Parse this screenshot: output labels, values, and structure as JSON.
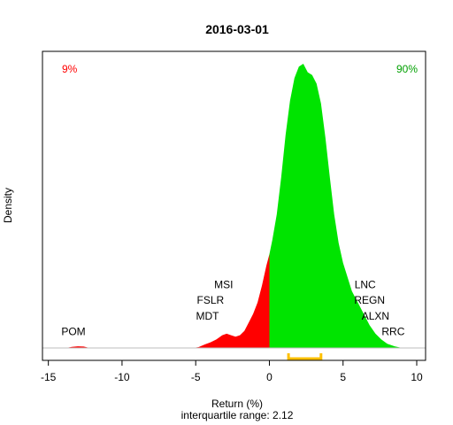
{
  "chart_data": {
    "type": "area",
    "title": "2016-03-01",
    "xlabel": "Return (%)",
    "xlabel_sub": "interquartile range: 2.12",
    "ylabel": "Density",
    "xlim": [
      -15.4,
      10.6
    ],
    "ylim": [
      0,
      1
    ],
    "grid": false,
    "x_ticks": [
      -15,
      -10,
      -5,
      0,
      5,
      10
    ],
    "x_tick_labels": [
      "-15",
      "-10",
      "-5",
      "0",
      "5",
      "10"
    ],
    "left_pct_label": "9%",
    "right_pct_label": "90%",
    "colors": {
      "negative": "#ff0000",
      "positive": "#00e400",
      "iqr": "#ffc000",
      "baseline": "#bebebe"
    },
    "iqr": [
      1.3,
      3.5
    ],
    "density": [
      [
        -13.8,
        0.0
      ],
      [
        -13.4,
        0.004
      ],
      [
        -13.0,
        0.006
      ],
      [
        -12.6,
        0.005
      ],
      [
        -12.2,
        0.0
      ],
      [
        -5.2,
        0.0
      ],
      [
        -4.8,
        0.003
      ],
      [
        -4.4,
        0.012
      ],
      [
        -4.0,
        0.02
      ],
      [
        -3.6,
        0.03
      ],
      [
        -3.2,
        0.045
      ],
      [
        -2.9,
        0.05
      ],
      [
        -2.6,
        0.045
      ],
      [
        -2.3,
        0.04
      ],
      [
        -2.0,
        0.045
      ],
      [
        -1.7,
        0.06
      ],
      [
        -1.4,
        0.09
      ],
      [
        -1.1,
        0.12
      ],
      [
        -0.8,
        0.16
      ],
      [
        -0.5,
        0.22
      ],
      [
        -0.2,
        0.29
      ],
      [
        0.0,
        0.33
      ],
      [
        0.2,
        0.38
      ],
      [
        0.5,
        0.47
      ],
      [
        0.8,
        0.6
      ],
      [
        1.1,
        0.75
      ],
      [
        1.4,
        0.87
      ],
      [
        1.7,
        0.95
      ],
      [
        2.0,
        0.99
      ],
      [
        2.3,
        1.0
      ],
      [
        2.6,
        0.97
      ],
      [
        2.9,
        0.96
      ],
      [
        3.2,
        0.93
      ],
      [
        3.5,
        0.86
      ],
      [
        3.8,
        0.74
      ],
      [
        4.1,
        0.6
      ],
      [
        4.4,
        0.47
      ],
      [
        4.7,
        0.37
      ],
      [
        5.0,
        0.3
      ],
      [
        5.3,
        0.25
      ],
      [
        5.6,
        0.2
      ],
      [
        6.0,
        0.16
      ],
      [
        6.4,
        0.12
      ],
      [
        6.8,
        0.08
      ],
      [
        7.2,
        0.05
      ],
      [
        7.6,
        0.03
      ],
      [
        8.0,
        0.015
      ],
      [
        8.5,
        0.006
      ],
      [
        9.0,
        0.0
      ]
    ],
    "annotations": [
      {
        "text": "POM",
        "x": -13.3,
        "y": 0.045
      },
      {
        "text": "MDT",
        "x": -4.2,
        "y": 0.1
      },
      {
        "text": "FSLR",
        "x": -4.0,
        "y": 0.155
      },
      {
        "text": "MSI",
        "x": -3.1,
        "y": 0.21
      },
      {
        "text": "LNC",
        "x": 6.5,
        "y": 0.21
      },
      {
        "text": "REGN",
        "x": 6.8,
        "y": 0.155
      },
      {
        "text": "ALXN",
        "x": 7.2,
        "y": 0.1
      },
      {
        "text": "RRC",
        "x": 8.4,
        "y": 0.045
      }
    ]
  }
}
